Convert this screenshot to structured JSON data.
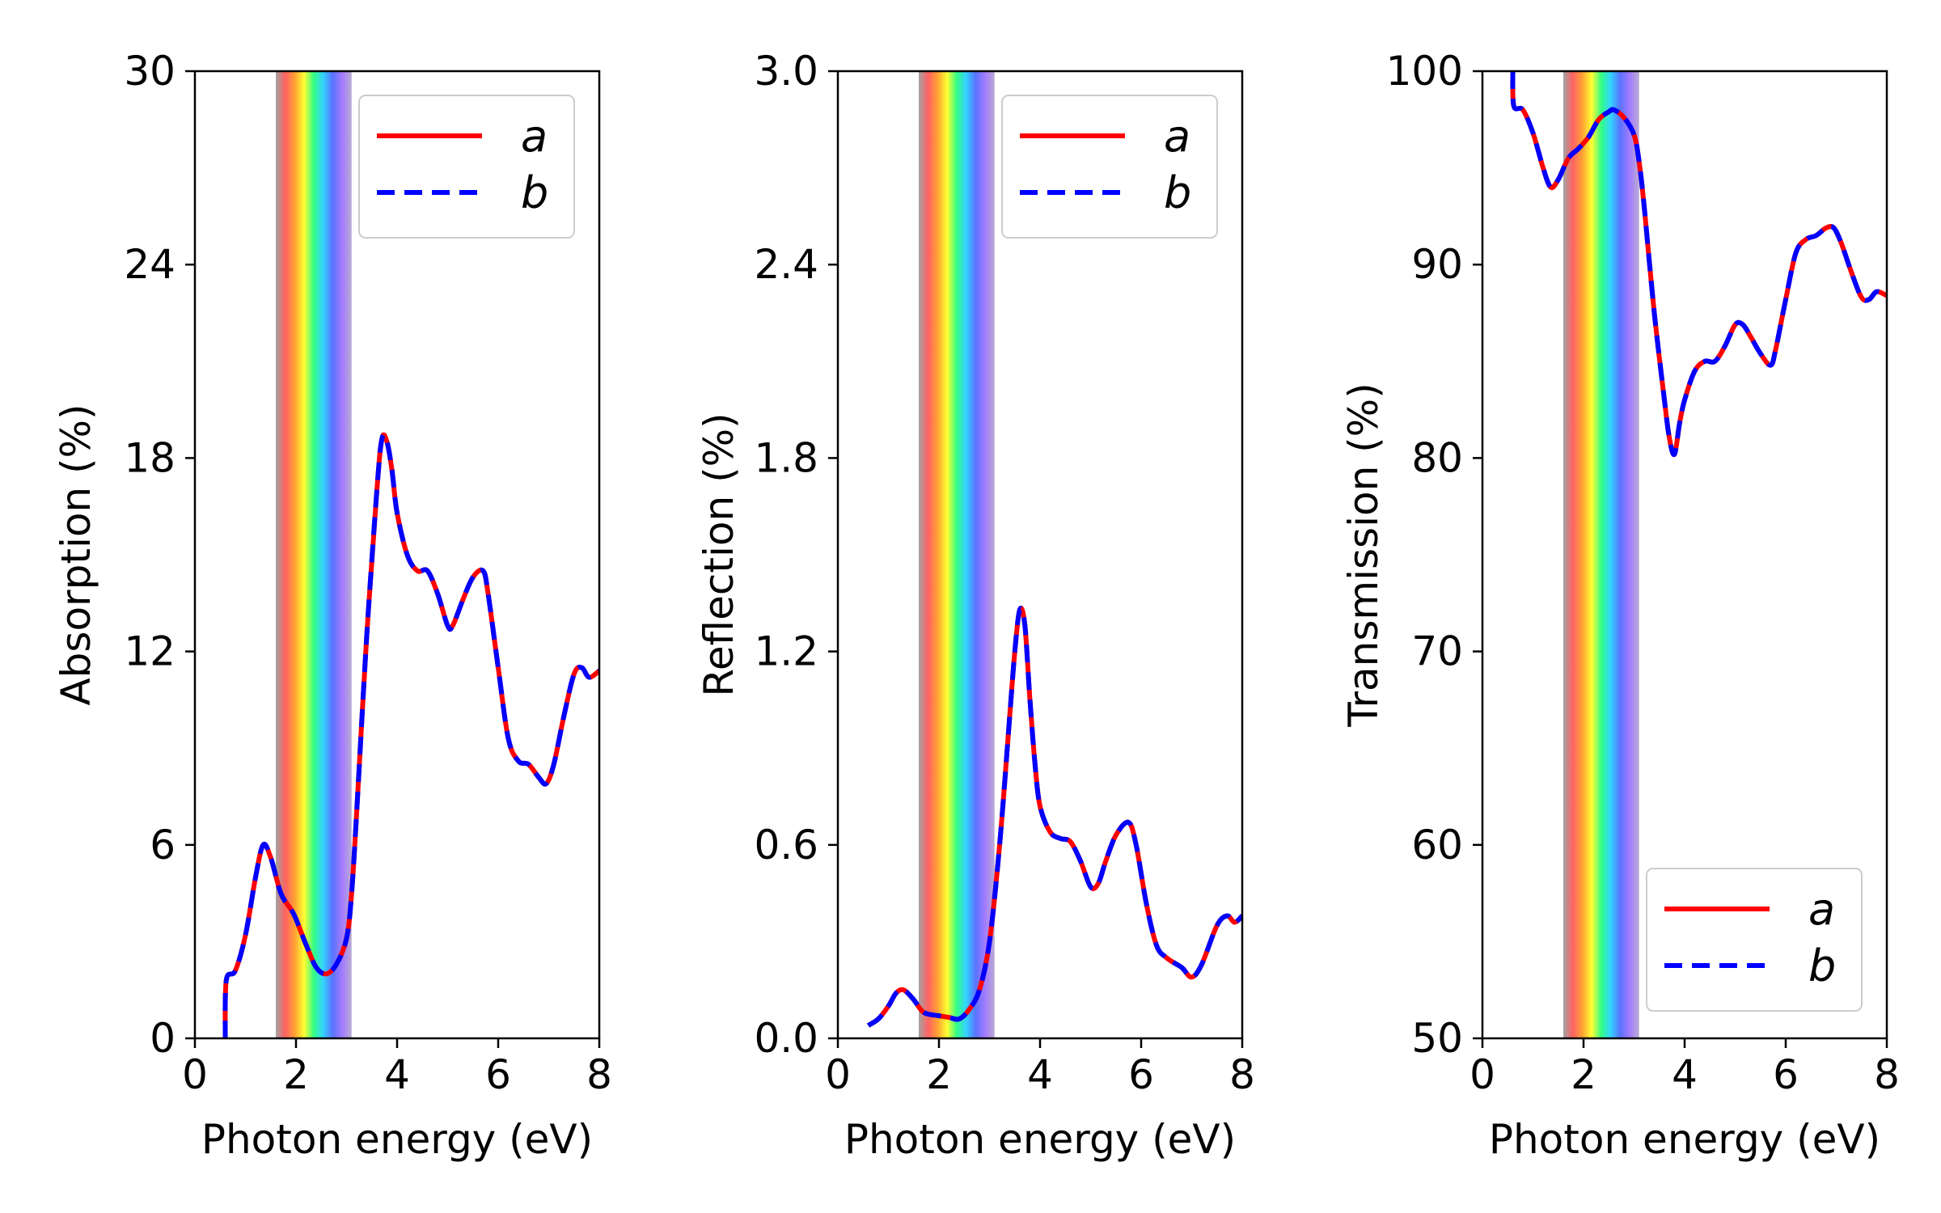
{
  "colors": {
    "series_a": "#ff0000",
    "series_b": "#0000ff",
    "spectrum": [
      "#8c8c8c",
      "#ff3b3b",
      "#ff8a00",
      "#ffff00",
      "#00ff66",
      "#00c8ff",
      "#3050ff",
      "#8c5aff",
      "#aa96c8"
    ]
  },
  "visible_band_ev": [
    1.6,
    3.1
  ],
  "chart_data": [
    {
      "type": "line",
      "xlabel": "Photon energy (eV)",
      "ylabel": "Absorption (%)",
      "xlim": [
        0,
        8
      ],
      "ylim": [
        0,
        30
      ],
      "xticks": [
        "0",
        "2",
        "4",
        "6",
        "8"
      ],
      "yticks": [
        "0",
        "6",
        "12",
        "18",
        "24",
        "30"
      ],
      "legend_position": "top-right",
      "series": [
        {
          "name": "a",
          "x": [
            0.6,
            0.62,
            0.8,
            1.0,
            1.2,
            1.35,
            1.5,
            1.7,
            1.9,
            2.0,
            2.2,
            2.4,
            2.6,
            2.8,
            3.0,
            3.1,
            3.2,
            3.4,
            3.6,
            3.7,
            3.8,
            3.9,
            4.0,
            4.2,
            4.4,
            4.6,
            4.8,
            5.0,
            5.1,
            5.3,
            5.5,
            5.7,
            5.8,
            6.0,
            6.2,
            6.4,
            6.6,
            6.8,
            6.95,
            7.1,
            7.3,
            7.5,
            7.65,
            7.8,
            8.0
          ],
          "y": [
            0,
            1.8,
            2.1,
            3.2,
            5.0,
            6.0,
            5.6,
            4.5,
            4.0,
            3.7,
            2.9,
            2.2,
            2.0,
            2.3,
            3.1,
            4.5,
            7.0,
            12.5,
            17.0,
            18.6,
            18.5,
            17.6,
            16.3,
            15.0,
            14.5,
            14.5,
            13.8,
            12.8,
            12.8,
            13.6,
            14.3,
            14.5,
            13.8,
            11.5,
            9.3,
            8.6,
            8.5,
            8.1,
            7.9,
            8.5,
            10.0,
            11.3,
            11.5,
            11.2,
            11.4
          ]
        },
        {
          "name": "b",
          "x": [
            0.6,
            0.62,
            0.8,
            1.0,
            1.2,
            1.35,
            1.5,
            1.7,
            1.9,
            2.0,
            2.2,
            2.4,
            2.6,
            2.8,
            3.0,
            3.1,
            3.2,
            3.4,
            3.6,
            3.7,
            3.8,
            3.9,
            4.0,
            4.2,
            4.4,
            4.6,
            4.8,
            5.0,
            5.1,
            5.3,
            5.5,
            5.7,
            5.8,
            6.0,
            6.2,
            6.4,
            6.6,
            6.8,
            6.95,
            7.1,
            7.3,
            7.5,
            7.65,
            7.8,
            8.0
          ],
          "y": [
            0,
            1.8,
            2.1,
            3.2,
            5.0,
            6.0,
            5.6,
            4.5,
            4.0,
            3.7,
            2.9,
            2.2,
            2.0,
            2.3,
            3.1,
            4.5,
            7.0,
            12.5,
            17.0,
            18.6,
            18.5,
            17.6,
            16.3,
            15.0,
            14.5,
            14.5,
            13.8,
            12.8,
            12.8,
            13.6,
            14.3,
            14.5,
            13.8,
            11.5,
            9.3,
            8.6,
            8.5,
            8.1,
            7.9,
            8.5,
            10.0,
            11.3,
            11.5,
            11.2,
            11.4
          ]
        }
      ]
    },
    {
      "type": "line",
      "xlabel": "Photon energy (eV)",
      "ylabel": "Reflection (%)",
      "xlim": [
        0,
        8
      ],
      "ylim": [
        0,
        3.0
      ],
      "xticks": [
        "0",
        "2",
        "4",
        "6",
        "8"
      ],
      "yticks": [
        "0.0",
        "0.6",
        "1.2",
        "1.8",
        "2.4",
        "3.0"
      ],
      "legend_position": "top-right",
      "series": [
        {
          "name": "a",
          "x": [
            0.6,
            0.8,
            1.0,
            1.15,
            1.3,
            1.5,
            1.7,
            2.0,
            2.2,
            2.4,
            2.6,
            2.8,
            3.0,
            3.2,
            3.4,
            3.5,
            3.6,
            3.7,
            3.8,
            3.9,
            4.0,
            4.2,
            4.4,
            4.6,
            4.8,
            5.0,
            5.15,
            5.3,
            5.5,
            5.75,
            5.9,
            6.1,
            6.3,
            6.5,
            6.8,
            7.0,
            7.2,
            7.5,
            7.7,
            7.85,
            8.0
          ],
          "y": [
            0.04,
            0.06,
            0.1,
            0.14,
            0.15,
            0.12,
            0.08,
            0.07,
            0.065,
            0.06,
            0.09,
            0.15,
            0.3,
            0.6,
            1.0,
            1.2,
            1.33,
            1.28,
            1.05,
            0.85,
            0.72,
            0.64,
            0.62,
            0.61,
            0.55,
            0.47,
            0.48,
            0.55,
            0.63,
            0.67,
            0.6,
            0.42,
            0.29,
            0.25,
            0.22,
            0.19,
            0.23,
            0.35,
            0.38,
            0.36,
            0.38
          ]
        },
        {
          "name": "b",
          "x": [
            0.6,
            0.8,
            1.0,
            1.15,
            1.3,
            1.5,
            1.7,
            2.0,
            2.2,
            2.4,
            2.6,
            2.8,
            3.0,
            3.2,
            3.4,
            3.5,
            3.6,
            3.7,
            3.8,
            3.9,
            4.0,
            4.2,
            4.4,
            4.6,
            4.8,
            5.0,
            5.15,
            5.3,
            5.5,
            5.75,
            5.9,
            6.1,
            6.3,
            6.5,
            6.8,
            7.0,
            7.2,
            7.5,
            7.7,
            7.85,
            8.0
          ],
          "y": [
            0.04,
            0.06,
            0.1,
            0.14,
            0.15,
            0.12,
            0.08,
            0.07,
            0.065,
            0.06,
            0.09,
            0.15,
            0.3,
            0.6,
            1.0,
            1.2,
            1.33,
            1.28,
            1.05,
            0.85,
            0.72,
            0.64,
            0.62,
            0.61,
            0.55,
            0.47,
            0.48,
            0.55,
            0.63,
            0.67,
            0.6,
            0.42,
            0.29,
            0.25,
            0.22,
            0.19,
            0.23,
            0.35,
            0.38,
            0.36,
            0.38
          ]
        }
      ]
    },
    {
      "type": "line",
      "xlabel": "Photon energy (eV)",
      "ylabel": "Transmission (%)",
      "xlim": [
        0,
        8
      ],
      "ylim": [
        50,
        100
      ],
      "xticks": [
        "0",
        "2",
        "4",
        "6",
        "8"
      ],
      "yticks": [
        "50",
        "60",
        "70",
        "80",
        "90",
        "100"
      ],
      "legend_position": "bottom-right",
      "series": [
        {
          "name": "a",
          "x": [
            0.6,
            0.62,
            0.8,
            1.0,
            1.2,
            1.35,
            1.5,
            1.7,
            1.9,
            2.1,
            2.3,
            2.5,
            2.6,
            2.8,
            3.0,
            3.1,
            3.2,
            3.4,
            3.6,
            3.7,
            3.8,
            3.9,
            4.0,
            4.2,
            4.4,
            4.6,
            4.8,
            5.0,
            5.15,
            5.3,
            5.5,
            5.7,
            5.8,
            6.0,
            6.2,
            6.4,
            6.6,
            6.8,
            6.95,
            7.1,
            7.3,
            7.5,
            7.65,
            7.8,
            8.0
          ],
          "y": [
            100,
            98.2,
            98.0,
            96.8,
            95.0,
            94.0,
            94.4,
            95.5,
            96.0,
            96.6,
            97.5,
            97.9,
            98.0,
            97.6,
            96.7,
            95.3,
            93.0,
            87.5,
            83.0,
            81.0,
            80.2,
            81.8,
            83.0,
            84.5,
            85.0,
            85.0,
            85.8,
            86.9,
            86.9,
            86.3,
            85.4,
            84.8,
            85.6,
            88.2,
            90.6,
            91.3,
            91.5,
            91.9,
            91.9,
            91.1,
            89.6,
            88.3,
            88.2,
            88.6,
            88.4
          ]
        },
        {
          "name": "b",
          "x": [
            0.6,
            0.62,
            0.8,
            1.0,
            1.2,
            1.35,
            1.5,
            1.7,
            1.9,
            2.1,
            2.3,
            2.5,
            2.6,
            2.8,
            3.0,
            3.1,
            3.2,
            3.4,
            3.6,
            3.7,
            3.8,
            3.9,
            4.0,
            4.2,
            4.4,
            4.6,
            4.8,
            5.0,
            5.15,
            5.3,
            5.5,
            5.7,
            5.8,
            6.0,
            6.2,
            6.4,
            6.6,
            6.8,
            6.95,
            7.1,
            7.3,
            7.5,
            7.65,
            7.8,
            8.0
          ],
          "y": [
            100,
            98.2,
            98.0,
            96.8,
            95.0,
            94.0,
            94.4,
            95.5,
            96.0,
            96.6,
            97.5,
            97.9,
            98.0,
            97.6,
            96.7,
            95.3,
            93.0,
            87.5,
            83.0,
            81.0,
            80.2,
            81.8,
            83.0,
            84.5,
            85.0,
            85.0,
            85.8,
            86.9,
            86.9,
            86.3,
            85.4,
            84.8,
            85.6,
            88.2,
            90.6,
            91.3,
            91.5,
            91.9,
            91.9,
            91.1,
            89.6,
            88.3,
            88.2,
            88.6,
            88.4
          ]
        }
      ]
    }
  ]
}
